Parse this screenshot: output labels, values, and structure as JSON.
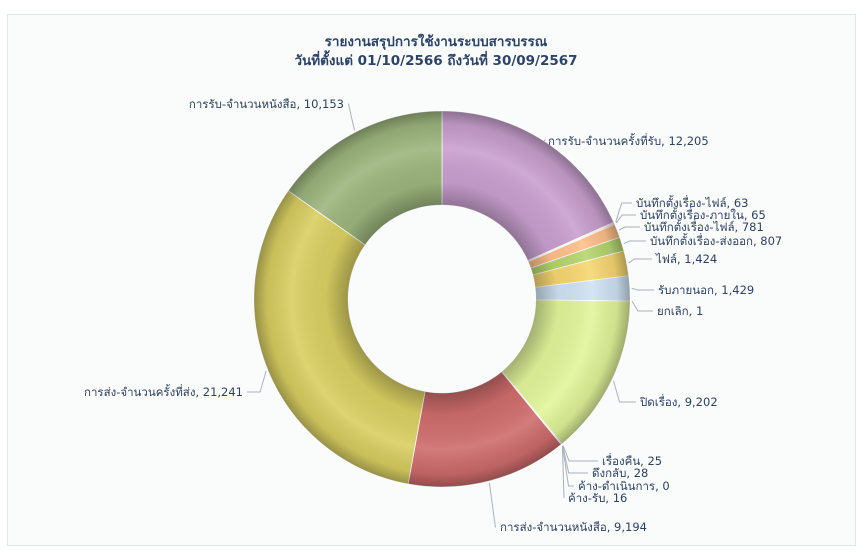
{
  "chart_data": {
    "type": "pie",
    "style": "donut",
    "title": "รายงานสรุปการใช้งานระบบสารบรรณ",
    "subtitle": "วันที่ตั้งแต่ 01/10/2566 ถึงวันที่ 30/09/2567",
    "slices": [
      {
        "label": "การรับ-จำนวนครั้งที่รับ",
        "value": 12205,
        "display": "12,205",
        "color": "#c9a0cf"
      },
      {
        "label": "บันทึกตั้งเรื่อง-ไฟล์",
        "value": 63,
        "display": "63",
        "color": "#f2c6a5"
      },
      {
        "label": "บันทึกตั้งเรื่อง-ภายใน",
        "value": 65,
        "display": "65",
        "color": "#f5a88a"
      },
      {
        "label": "บันทึกตั้งเรื่อง-ไฟล์",
        "value": 781,
        "display": "781",
        "color": "#ffc08a"
      },
      {
        "label": "บันทึกตั้งเรื่อง-ส่งออก",
        "value": 807,
        "display": "807",
        "color": "#b6d66e"
      },
      {
        "label": "ไฟล์",
        "value": 1424,
        "display": "1,424",
        "color": "#f7d771"
      },
      {
        "label": "รับภายนอก",
        "value": 1429,
        "display": "1,429",
        "color": "#cfe3f3"
      },
      {
        "label": "ยกเลิก",
        "value": 1,
        "display": "1",
        "color": "#9fc4e4"
      },
      {
        "label": "ปิดเรื่อง",
        "value": 9202,
        "display": "9,202",
        "color": "#e2f59a"
      },
      {
        "label": "เรื่องคืน",
        "value": 25,
        "display": "25",
        "color": "#a9d6ea"
      },
      {
        "label": "ดึงกลับ",
        "value": 28,
        "display": "28",
        "color": "#c6b0d8"
      },
      {
        "label": "ค้าง-ดำเนินการ",
        "value": 0,
        "display": "0",
        "color": "#a9cf7a"
      },
      {
        "label": "ค้าง-รับ",
        "value": 16,
        "display": "16",
        "color": "#9ab4dc"
      },
      {
        "label": "การส่ง-จำนวนหนังสือ",
        "value": 9194,
        "display": "9,194",
        "color": "#cf6c6c"
      },
      {
        "label": "การส่ง-จำนวนครั้งที่ส่ง",
        "value": 21241,
        "display": "21,241",
        "color": "#d9cf62"
      },
      {
        "label": "การรับ-จำนวนหนังสือ",
        "value": 10153,
        "display": "10,153",
        "color": "#9db57d"
      }
    ],
    "legend": "none"
  }
}
